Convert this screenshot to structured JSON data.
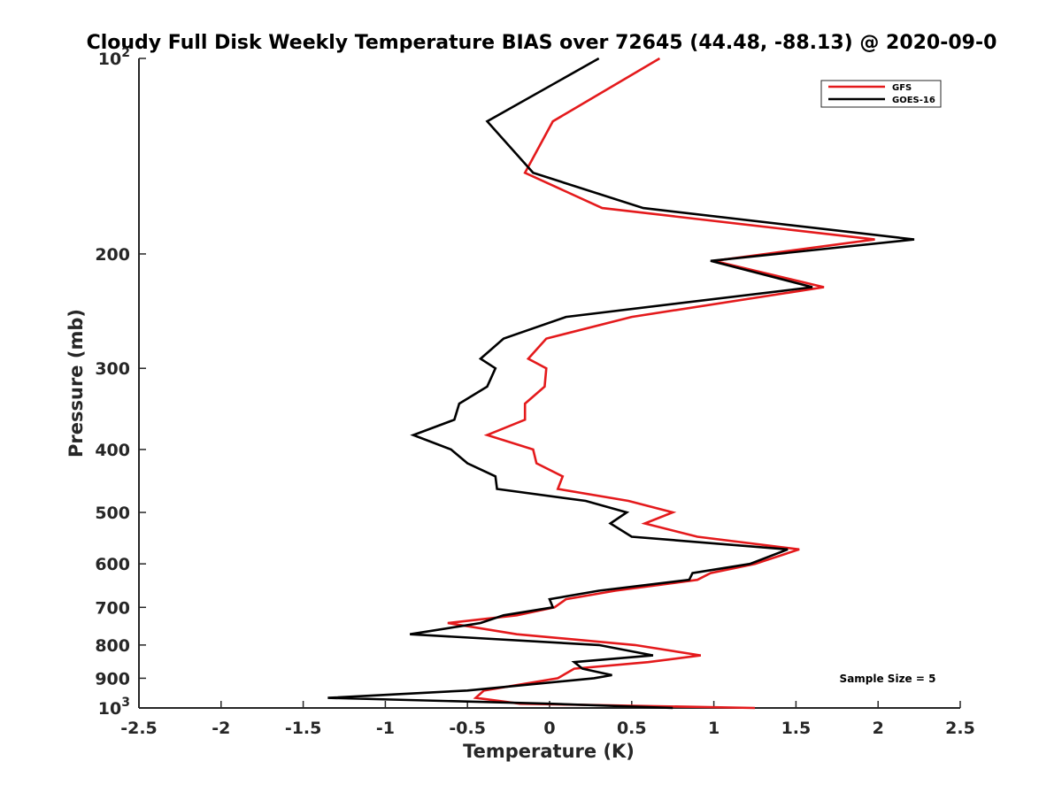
{
  "chart_data": {
    "type": "line",
    "title": "Cloudy Full Disk Weekly Temperature BIAS over 72645 (44.48, -88.13) @ 2020-09-0",
    "xlabel": "Temperature (K)",
    "ylabel": "Pressure (mb)",
    "xlim": [
      -2.5,
      2.5
    ],
    "ylim": [
      1000,
      100
    ],
    "y_scale": "log",
    "x_ticks": [
      -2.5,
      -2,
      -1.5,
      -1,
      -0.5,
      0,
      0.5,
      1,
      1.5,
      2,
      2.5
    ],
    "x_tick_labels": [
      "-2.5",
      "-2",
      "-1.5",
      "-1",
      "-0.5",
      "0",
      "0.5",
      "1",
      "1.5",
      "2",
      "2.5"
    ],
    "y_ticks": [
      100,
      200,
      300,
      400,
      500,
      600,
      700,
      800,
      900,
      1000
    ],
    "y_tick_labels": [
      {
        "base": "10",
        "exp": "2"
      },
      {
        "base": "200",
        "exp": ""
      },
      {
        "base": "300",
        "exp": ""
      },
      {
        "base": "400",
        "exp": ""
      },
      {
        "base": "500",
        "exp": ""
      },
      {
        "base": "600",
        "exp": ""
      },
      {
        "base": "700",
        "exp": ""
      },
      {
        "base": "800",
        "exp": ""
      },
      {
        "base": "900",
        "exp": ""
      },
      {
        "base": "10",
        "exp": "3"
      }
    ],
    "grid": false,
    "legend_position": "top-right",
    "annotation": "Sample Size = 5",
    "series": [
      {
        "name": "GFS",
        "color": "#e41a1c",
        "points": [
          [
            0.67,
            100
          ],
          [
            0.02,
            125
          ],
          [
            -0.15,
            150
          ],
          [
            0.32,
            170
          ],
          [
            1.98,
            190
          ],
          [
            1.0,
            205
          ],
          [
            1.67,
            225
          ],
          [
            0.5,
            250
          ],
          [
            -0.02,
            270
          ],
          [
            -0.13,
            290
          ],
          [
            -0.02,
            300
          ],
          [
            -0.03,
            320
          ],
          [
            -0.15,
            340
          ],
          [
            -0.15,
            360
          ],
          [
            -0.38,
            380
          ],
          [
            -0.1,
            400
          ],
          [
            -0.08,
            420
          ],
          [
            0.08,
            440
          ],
          [
            0.05,
            460
          ],
          [
            0.48,
            480
          ],
          [
            0.75,
            500
          ],
          [
            0.58,
            520
          ],
          [
            0.9,
            545
          ],
          [
            1.52,
            570
          ],
          [
            1.25,
            600
          ],
          [
            0.98,
            620
          ],
          [
            0.9,
            635
          ],
          [
            0.4,
            660
          ],
          [
            0.1,
            680
          ],
          [
            0.03,
            700
          ],
          [
            -0.2,
            720
          ],
          [
            -0.62,
            740
          ],
          [
            -0.2,
            770
          ],
          [
            0.52,
            800
          ],
          [
            0.92,
            830
          ],
          [
            0.6,
            850
          ],
          [
            0.15,
            870
          ],
          [
            0.05,
            900
          ],
          [
            -0.4,
            940
          ],
          [
            -0.45,
            965
          ],
          [
            -0.18,
            985
          ],
          [
            1.25,
            1000
          ]
        ]
      },
      {
        "name": "GOES-16",
        "color": "#000000",
        "points": [
          [
            0.3,
            100
          ],
          [
            -0.38,
            125
          ],
          [
            -0.1,
            150
          ],
          [
            0.57,
            170
          ],
          [
            2.22,
            190
          ],
          [
            0.98,
            205
          ],
          [
            1.6,
            225
          ],
          [
            0.1,
            250
          ],
          [
            -0.28,
            270
          ],
          [
            -0.42,
            290
          ],
          [
            -0.33,
            300
          ],
          [
            -0.38,
            320
          ],
          [
            -0.55,
            340
          ],
          [
            -0.58,
            360
          ],
          [
            -0.83,
            380
          ],
          [
            -0.6,
            400
          ],
          [
            -0.5,
            420
          ],
          [
            -0.33,
            440
          ],
          [
            -0.32,
            460
          ],
          [
            0.22,
            480
          ],
          [
            0.47,
            500
          ],
          [
            0.37,
            520
          ],
          [
            0.5,
            545
          ],
          [
            1.45,
            570
          ],
          [
            1.22,
            600
          ],
          [
            0.87,
            620
          ],
          [
            0.85,
            635
          ],
          [
            0.3,
            660
          ],
          [
            0.0,
            680
          ],
          [
            0.02,
            700
          ],
          [
            -0.28,
            720
          ],
          [
            -0.42,
            740
          ],
          [
            -0.85,
            770
          ],
          [
            0.3,
            800
          ],
          [
            0.63,
            830
          ],
          [
            0.15,
            850
          ],
          [
            0.2,
            870
          ],
          [
            0.38,
            890
          ],
          [
            0.27,
            900
          ],
          [
            -0.5,
            940
          ],
          [
            -1.35,
            965
          ],
          [
            0.0,
            985
          ],
          [
            0.75,
            1000
          ]
        ]
      }
    ]
  }
}
